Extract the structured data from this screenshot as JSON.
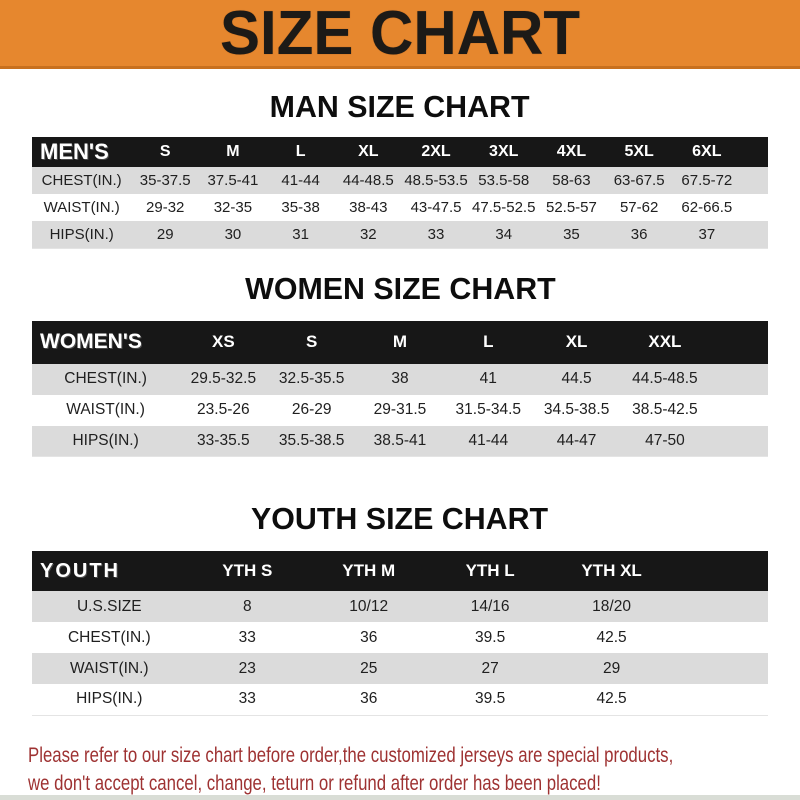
{
  "banner": {
    "title": "SIZE CHART"
  },
  "colors": {
    "banner_bg": "#E6872E",
    "banner_border": "#C8701E",
    "header_bar": "#171717",
    "row_gray": "#DBDBDB",
    "footer_red": "#9E3232"
  },
  "sections": [
    {
      "heading": "MAN SIZE CHART",
      "header_label": "MEN'S",
      "columns": [
        "S",
        "M",
        "L",
        "XL",
        "2XL",
        "3XL",
        "4XL",
        "5XL",
        "6XL"
      ],
      "rows": [
        {
          "label": "CHEST(IN.)",
          "values": [
            "35-37.5",
            "37.5-41",
            "41-44",
            "44-48.5",
            "48.5-53.5",
            "53.5-58",
            "58-63",
            "63-67.5",
            "67.5-72"
          ]
        },
        {
          "label": "WAIST(IN.)",
          "values": [
            "29-32",
            "32-35",
            "35-38",
            "38-43",
            "43-47.5",
            "47.5-52.5",
            "52.5-57",
            "57-62",
            "62-66.5"
          ]
        },
        {
          "label": "HIPS(IN.)",
          "values": [
            "29",
            "30",
            "31",
            "32",
            "33",
            "34",
            "35",
            "36",
            "37"
          ]
        }
      ]
    },
    {
      "heading": "WOMEN SIZE CHART",
      "header_label": "WOMEN'S",
      "columns": [
        "XS",
        "S",
        "M",
        "L",
        "XL",
        "XXL"
      ],
      "rows": [
        {
          "label": "CHEST(IN.)",
          "values": [
            "29.5-32.5",
            "32.5-35.5",
            "38",
            "41",
            "44.5",
            "44.5-48.5"
          ]
        },
        {
          "label": "WAIST(IN.)",
          "values": [
            "23.5-26",
            "26-29",
            "29-31.5",
            "31.5-34.5",
            "34.5-38.5",
            "38.5-42.5"
          ]
        },
        {
          "label": "HIPS(IN.)",
          "values": [
            "33-35.5",
            "35.5-38.5",
            "38.5-41",
            "41-44",
            "44-47",
            "47-50"
          ]
        }
      ]
    },
    {
      "heading": "YOUTH SIZE CHART",
      "header_label": "YOUTH",
      "columns": [
        "YTH S",
        "YTH M",
        "YTH L",
        "YTH XL"
      ],
      "rows": [
        {
          "label": "U.S.SIZE",
          "values": [
            "8",
            "10/12",
            "14/16",
            "18/20"
          ]
        },
        {
          "label": "CHEST(IN.)",
          "values": [
            "33",
            "36",
            "39.5",
            "42.5"
          ]
        },
        {
          "label": "WAIST(IN.)",
          "values": [
            "23",
            "25",
            "27",
            "29"
          ]
        },
        {
          "label": "HIPS(IN.)",
          "values": [
            "33",
            "36",
            "39.5",
            "42.5"
          ]
        }
      ]
    }
  ],
  "footer": {
    "line1": "Please refer to our size chart before order,the customized jerseys are special products,",
    "line2": "we don't accept cancel, change, teturn or refund after order has been placed!"
  }
}
